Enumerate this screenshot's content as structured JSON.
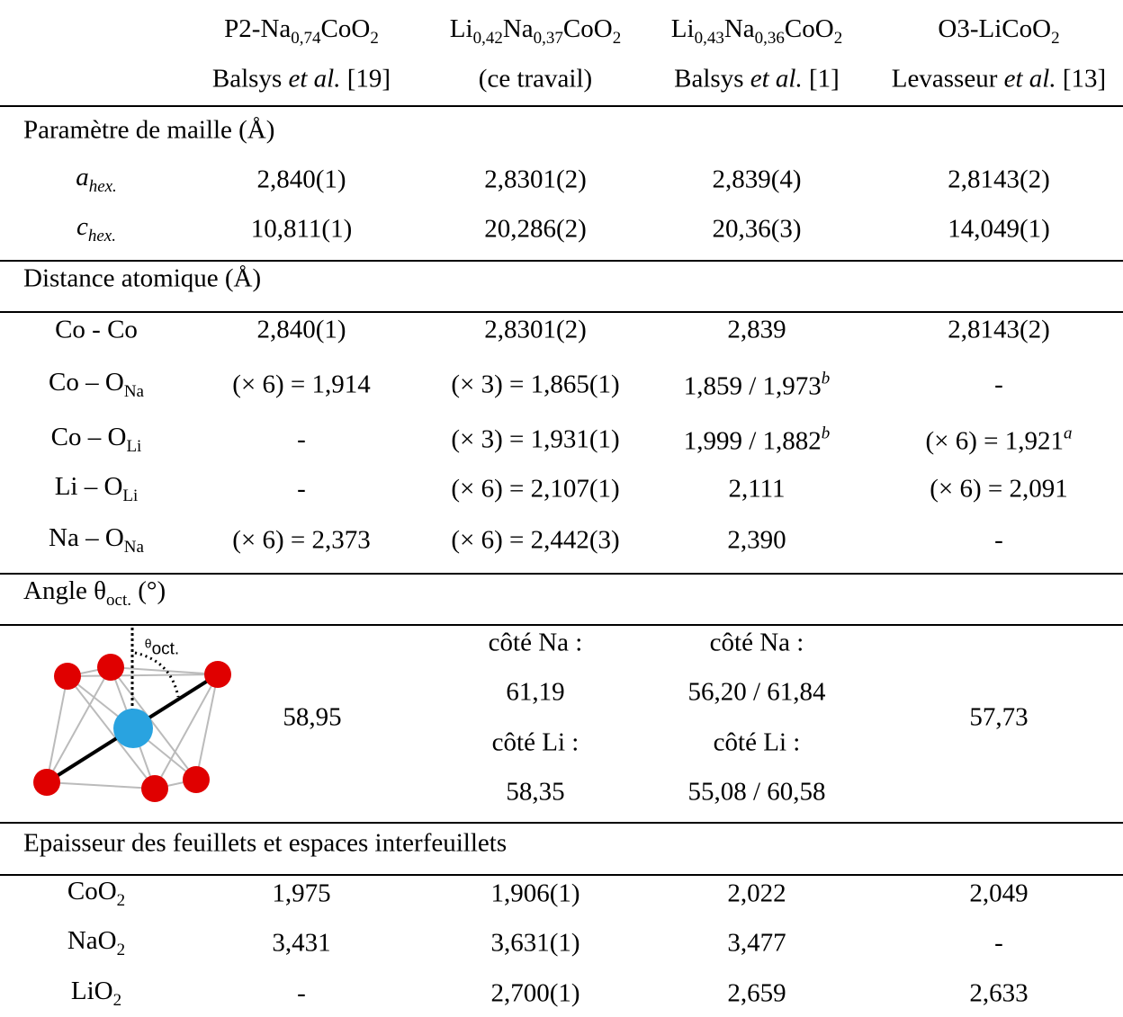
{
  "header": [
    {
      "formula": [
        "P2-Na",
        "0,74",
        "CoO",
        "2"
      ],
      "reference": [
        "Balsys ",
        "et al.",
        " [19]"
      ]
    },
    {
      "formula": [
        "Li",
        "0,42",
        "Na",
        "0,37",
        "CoO",
        "2"
      ],
      "reference": [
        "(ce travail)"
      ]
    },
    {
      "formula": [
        "Li",
        "0,43",
        "Na",
        "0,36",
        "CoO",
        "2"
      ],
      "reference": [
        "Balsys ",
        "et al.",
        " [1]"
      ]
    },
    {
      "formula": [
        "O3-LiCoO",
        "2"
      ],
      "reference": [
        "Levasseur ",
        "et al.",
        " [13]"
      ]
    }
  ],
  "sections": [
    {
      "title": [
        "Paramètre de maille (Å)"
      ],
      "rows": [
        {
          "label": [
            "a",
            "hex."
          ],
          "cells": [
            "2,840(1)",
            "2,8301(2)",
            "2,839(4)",
            "2,8143(2)"
          ]
        },
        {
          "label": [
            "c",
            "hex."
          ],
          "cells": [
            "10,811(1)",
            "20,286(2)",
            "20,36(3)",
            "14,049(1)"
          ]
        }
      ]
    },
    {
      "title": [
        "Distance atomique (Å)"
      ],
      "rows": [
        {
          "label": [
            "Co - Co"
          ],
          "cells": [
            "2,840(1)",
            "2,8301(2)",
            "2,839",
            "2,8143(2)"
          ]
        },
        {
          "label": [
            "Co – O",
            "Na"
          ],
          "cells": [
            "(× 6) = 1,914",
            "(× 3) = 1,865(1)",
            [
              "1,859 / 1,973",
              "b"
            ],
            "-"
          ]
        },
        {
          "label": [
            "Co – O",
            "Li"
          ],
          "cells": [
            "-",
            "(× 3) = 1,931(1)",
            [
              "1,999 / 1,882",
              "b"
            ],
            [
              "(× 6) = 1,921",
              "a"
            ]
          ]
        },
        {
          "label": [
            "Li – O",
            "Li"
          ],
          "cells": [
            "-",
            "(× 6) = 2,107(1)",
            "2,111",
            "(× 6) = 2,091"
          ]
        },
        {
          "label": [
            "Na – O",
            "Na"
          ],
          "cells": [
            "(× 6) = 2,373",
            "(× 6) = 2,442(3)",
            "2,390",
            "-"
          ]
        }
      ]
    },
    {
      "title": [
        "Angle θ",
        "oct.",
        " (°)"
      ],
      "figure_label": [
        "θ",
        "oct."
      ],
      "cells": [
        [
          "58,95"
        ],
        [
          "côté Na :",
          "61,19",
          "côté Li :",
          "58,35"
        ],
        [
          "côté Na :",
          "56,20 / 61,84",
          "côté Li :",
          "55,08 / 60,58"
        ],
        [
          "57,73"
        ]
      ]
    },
    {
      "title": [
        "Epaisseur des feuillets et espaces interfeuillets"
      ],
      "rows": [
        {
          "label": [
            "CoO",
            "2"
          ],
          "cells": [
            "1,975",
            "1,906(1)",
            "2,022",
            "2,049"
          ]
        },
        {
          "label": [
            "NaO",
            "2"
          ],
          "cells": [
            "3,431",
            "3,631(1)",
            "3,477",
            "-"
          ]
        },
        {
          "label": [
            "LiO",
            "2"
          ],
          "cells": [
            "-",
            "2,700(1)",
            "2,659",
            "2,633"
          ]
        }
      ]
    }
  ]
}
